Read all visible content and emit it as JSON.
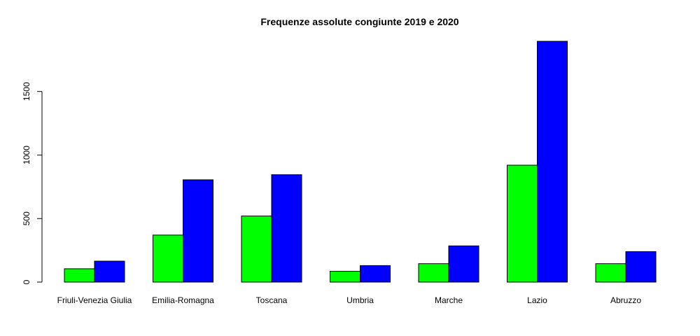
{
  "chart_data": {
    "type": "bar",
    "title": "Frequenze assolute congiunte 2019 e 2020",
    "xlabel": "",
    "ylabel": "",
    "categories": [
      "Friuli-Venezia Giulia",
      "Emilia-Romagna",
      "Toscana",
      "Umbria",
      "Marche",
      "Lazio",
      "Abruzzo"
    ],
    "series": [
      {
        "values": [
          105,
          370,
          520,
          85,
          145,
          920,
          145
        ],
        "color": "#00ff00"
      },
      {
        "values": [
          165,
          805,
          845,
          130,
          285,
          1895,
          240
        ],
        "color": "#0000ff"
      }
    ],
    "yticks": [
      0,
      500,
      1000,
      1500
    ],
    "ylim": [
      0,
      1895
    ],
    "grid": false,
    "legend": "none"
  }
}
